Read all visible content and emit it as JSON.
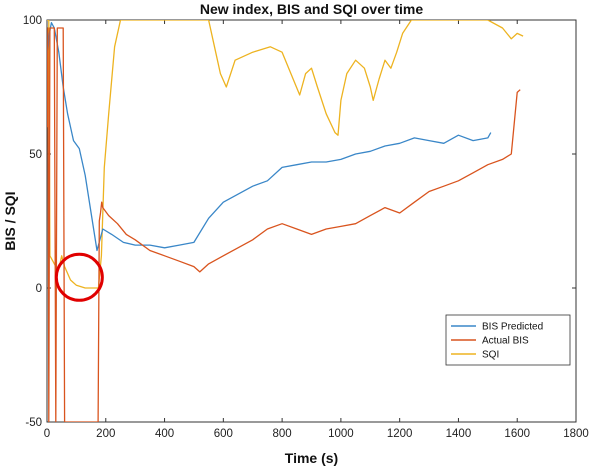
{
  "chart_data": {
    "type": "line",
    "title": "New index, BIS and SQI over time",
    "xlabel": "Time (s)",
    "ylabel": "BIS / SQI",
    "xlim": [
      0,
      1800
    ],
    "ylim": [
      -50,
      100
    ],
    "xticks": [
      0,
      200,
      400,
      600,
      800,
      1000,
      1200,
      1400,
      1600,
      1800
    ],
    "yticks": [
      -50,
      0,
      50,
      100
    ],
    "grid": false,
    "legend_position": "bottom-right",
    "series": [
      {
        "name": "BIS Predicted",
        "color": "#3a87c8",
        "x": [
          0,
          8,
          15,
          25,
          40,
          55,
          70,
          90,
          110,
          130,
          150,
          170,
          190,
          220,
          260,
          300,
          350,
          400,
          450,
          500,
          550,
          600,
          650,
          700,
          750,
          800,
          850,
          900,
          950,
          1000,
          1050,
          1100,
          1150,
          1200,
          1250,
          1300,
          1350,
          1400,
          1450,
          1500,
          1510
        ],
        "y": [
          85,
          95,
          99,
          97,
          88,
          75,
          65,
          55,
          52,
          42,
          28,
          14,
          22,
          20,
          17,
          16,
          16,
          15,
          16,
          17,
          26,
          32,
          35,
          38,
          40,
          45,
          46,
          47,
          47,
          48,
          50,
          51,
          53,
          54,
          56,
          55,
          54,
          57,
          55,
          56,
          58
        ]
      },
      {
        "name": "Actual BIS",
        "color": "#d9541e",
        "x": [
          0,
          3,
          6,
          10,
          15,
          20,
          25,
          30,
          35,
          40,
          45,
          50,
          55,
          60,
          170,
          174,
          178,
          182,
          186,
          190,
          210,
          240,
          270,
          300,
          350,
          400,
          450,
          500,
          520,
          550,
          600,
          650,
          700,
          750,
          800,
          850,
          900,
          950,
          1000,
          1050,
          1100,
          1150,
          1200,
          1250,
          1300,
          1350,
          1400,
          1450,
          1500,
          1550,
          1580,
          1600,
          1610
        ],
        "y": [
          60,
          97,
          -50,
          97,
          97,
          97,
          97,
          -50,
          97,
          97,
          97,
          97,
          97,
          -50,
          -50,
          -50,
          25,
          28,
          32,
          30,
          27,
          24,
          20,
          18,
          14,
          12,
          10,
          8,
          6,
          9,
          12,
          15,
          18,
          22,
          24,
          22,
          20,
          22,
          23,
          24,
          27,
          30,
          28,
          32,
          36,
          38,
          40,
          43,
          46,
          48,
          50,
          73,
          74
        ]
      },
      {
        "name": "SQI",
        "color": "#edb320",
        "x": [
          0,
          6,
          10,
          20,
          30,
          40,
          50,
          60,
          80,
          100,
          130,
          160,
          175,
          185,
          195,
          210,
          230,
          250,
          300,
          400,
          550,
          570,
          590,
          610,
          640,
          700,
          760,
          800,
          830,
          860,
          880,
          900,
          920,
          950,
          980,
          990,
          1000,
          1020,
          1050,
          1080,
          1100,
          1110,
          1130,
          1150,
          1170,
          1190,
          1210,
          1240,
          1300,
          1400,
          1500,
          1550,
          1580,
          1600,
          1620
        ],
        "y": [
          100,
          100,
          12,
          10,
          8,
          7,
          12,
          8,
          3,
          1,
          0,
          0,
          0,
          12,
          45,
          65,
          90,
          100,
          100,
          100,
          100,
          90,
          80,
          75,
          85,
          88,
          90,
          88,
          80,
          72,
          80,
          82,
          75,
          65,
          58,
          57,
          70,
          80,
          85,
          82,
          75,
          70,
          78,
          85,
          82,
          88,
          95,
          100,
          100,
          100,
          100,
          97,
          93,
          95,
          94
        ]
      }
    ],
    "annotations": [
      {
        "type": "circle",
        "color": "#e00000",
        "center": [
          110,
          4
        ],
        "label": ""
      }
    ]
  }
}
